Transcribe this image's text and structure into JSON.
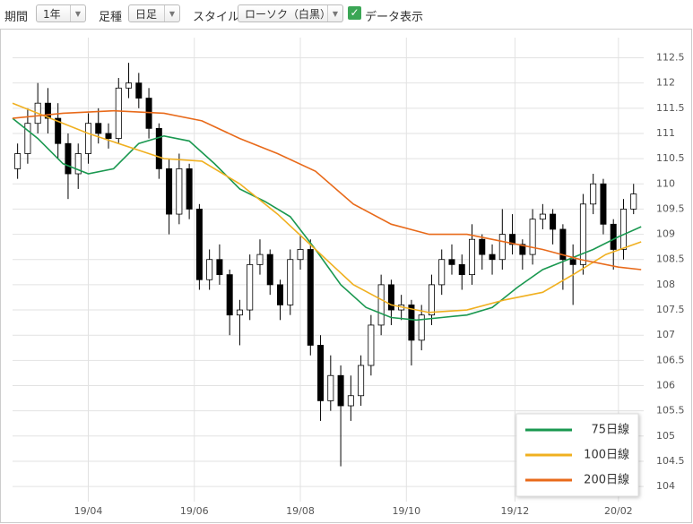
{
  "controls": {
    "period": {
      "label": "期間",
      "value": "1年"
    },
    "bar_type": {
      "label": "足種",
      "value": "日足"
    },
    "style": {
      "label": "スタイル",
      "value": "ローソク（白黒）"
    },
    "data_display": "データ表示"
  },
  "chart_data": {
    "type": "candlestick",
    "xlim": [
      0,
      250
    ],
    "ylim": [
      103.7,
      112.9
    ],
    "xticks": [
      {
        "value": 30,
        "label": "19/04"
      },
      {
        "value": 72,
        "label": "19/06"
      },
      {
        "value": 114,
        "label": "19/08"
      },
      {
        "value": 156,
        "label": "19/10"
      },
      {
        "value": 199,
        "label": "19/12"
      },
      {
        "value": 240,
        "label": "20/02"
      }
    ],
    "yticks": [
      104,
      104.5,
      105,
      105.5,
      106,
      106.5,
      107,
      107.5,
      108,
      108.5,
      109,
      109.5,
      110,
      110.5,
      111,
      111.5,
      112,
      112.5
    ],
    "grid": true,
    "legend": "lower right",
    "up_color": "#ffffff",
    "down_color": "#000000",
    "candles": [
      {
        "x": 2,
        "open": 110.3,
        "high": 110.8,
        "low": 110.1,
        "close": 110.6
      },
      {
        "x": 6,
        "open": 110.6,
        "high": 111.5,
        "low": 110.4,
        "close": 111.2
      },
      {
        "x": 10,
        "open": 111.2,
        "high": 112.0,
        "low": 111.0,
        "close": 111.6
      },
      {
        "x": 14,
        "open": 111.6,
        "high": 111.9,
        "low": 111.0,
        "close": 111.3
      },
      {
        "x": 18,
        "open": 111.3,
        "high": 111.6,
        "low": 110.5,
        "close": 110.8
      },
      {
        "x": 22,
        "open": 110.8,
        "high": 111.0,
        "low": 109.7,
        "close": 110.2
      },
      {
        "x": 26,
        "open": 110.2,
        "high": 110.8,
        "low": 109.9,
        "close": 110.6
      },
      {
        "x": 30,
        "open": 110.6,
        "high": 111.4,
        "low": 110.4,
        "close": 111.2
      },
      {
        "x": 34,
        "open": 111.2,
        "high": 111.5,
        "low": 110.8,
        "close": 111.0
      },
      {
        "x": 38,
        "open": 111.0,
        "high": 111.2,
        "low": 110.7,
        "close": 110.9
      },
      {
        "x": 42,
        "open": 110.9,
        "high": 112.1,
        "low": 110.8,
        "close": 111.9
      },
      {
        "x": 46,
        "open": 111.9,
        "high": 112.4,
        "low": 111.7,
        "close": 112.0
      },
      {
        "x": 50,
        "open": 112.0,
        "high": 112.2,
        "low": 111.5,
        "close": 111.7
      },
      {
        "x": 54,
        "open": 111.7,
        "high": 111.9,
        "low": 110.9,
        "close": 111.1
      },
      {
        "x": 58,
        "open": 111.1,
        "high": 111.2,
        "low": 110.1,
        "close": 110.3
      },
      {
        "x": 62,
        "open": 110.3,
        "high": 110.5,
        "low": 109.0,
        "close": 109.4
      },
      {
        "x": 66,
        "open": 109.4,
        "high": 110.6,
        "low": 109.2,
        "close": 110.3
      },
      {
        "x": 70,
        "open": 110.3,
        "high": 110.4,
        "low": 109.3,
        "close": 109.5
      },
      {
        "x": 74,
        "open": 109.5,
        "high": 109.6,
        "low": 107.9,
        "close": 108.1
      },
      {
        "x": 78,
        "open": 108.1,
        "high": 108.7,
        "low": 107.9,
        "close": 108.5
      },
      {
        "x": 82,
        "open": 108.5,
        "high": 108.8,
        "low": 108.0,
        "close": 108.2
      },
      {
        "x": 86,
        "open": 108.2,
        "high": 108.3,
        "low": 107.0,
        "close": 107.4
      },
      {
        "x": 90,
        "open": 107.4,
        "high": 107.7,
        "low": 106.8,
        "close": 107.5
      },
      {
        "x": 94,
        "open": 107.5,
        "high": 108.6,
        "low": 107.3,
        "close": 108.4
      },
      {
        "x": 98,
        "open": 108.4,
        "high": 108.9,
        "low": 108.2,
        "close": 108.6
      },
      {
        "x": 102,
        "open": 108.6,
        "high": 108.7,
        "low": 107.8,
        "close": 108.0
      },
      {
        "x": 106,
        "open": 108.0,
        "high": 108.1,
        "low": 107.3,
        "close": 107.6
      },
      {
        "x": 110,
        "open": 107.6,
        "high": 108.7,
        "low": 107.4,
        "close": 108.5
      },
      {
        "x": 114,
        "open": 108.5,
        "high": 109.0,
        "low": 108.3,
        "close": 108.7
      },
      {
        "x": 118,
        "open": 108.7,
        "high": 108.9,
        "low": 106.6,
        "close": 106.8
      },
      {
        "x": 122,
        "open": 106.8,
        "high": 107.0,
        "low": 105.3,
        "close": 105.7
      },
      {
        "x": 126,
        "open": 105.7,
        "high": 106.6,
        "low": 105.5,
        "close": 106.2
      },
      {
        "x": 130,
        "open": 106.2,
        "high": 106.4,
        "low": 104.4,
        "close": 105.6
      },
      {
        "x": 134,
        "open": 105.6,
        "high": 106.2,
        "low": 105.3,
        "close": 105.8
      },
      {
        "x": 138,
        "open": 105.8,
        "high": 106.6,
        "low": 105.6,
        "close": 106.4
      },
      {
        "x": 142,
        "open": 106.4,
        "high": 107.4,
        "low": 106.2,
        "close": 107.2
      },
      {
        "x": 146,
        "open": 107.2,
        "high": 108.2,
        "low": 107.0,
        "close": 108.0
      },
      {
        "x": 150,
        "open": 108.0,
        "high": 108.1,
        "low": 107.2,
        "close": 107.5
      },
      {
        "x": 154,
        "open": 107.5,
        "high": 107.8,
        "low": 107.3,
        "close": 107.6
      },
      {
        "x": 158,
        "open": 107.6,
        "high": 107.7,
        "low": 106.4,
        "close": 106.9
      },
      {
        "x": 162,
        "open": 106.9,
        "high": 107.6,
        "low": 106.7,
        "close": 107.4
      },
      {
        "x": 166,
        "open": 107.4,
        "high": 108.2,
        "low": 107.2,
        "close": 108.0
      },
      {
        "x": 170,
        "open": 108.0,
        "high": 108.7,
        "low": 107.8,
        "close": 108.5
      },
      {
        "x": 174,
        "open": 108.5,
        "high": 108.8,
        "low": 108.2,
        "close": 108.4
      },
      {
        "x": 178,
        "open": 108.4,
        "high": 108.6,
        "low": 107.9,
        "close": 108.2
      },
      {
        "x": 182,
        "open": 108.2,
        "high": 109.2,
        "low": 108.0,
        "close": 108.9
      },
      {
        "x": 186,
        "open": 108.9,
        "high": 109.0,
        "low": 108.3,
        "close": 108.6
      },
      {
        "x": 190,
        "open": 108.6,
        "high": 108.8,
        "low": 108.2,
        "close": 108.5
      },
      {
        "x": 194,
        "open": 108.5,
        "high": 109.5,
        "low": 108.3,
        "close": 109.0
      },
      {
        "x": 198,
        "open": 109.0,
        "high": 109.4,
        "low": 108.6,
        "close": 108.8
      },
      {
        "x": 202,
        "open": 108.8,
        "high": 108.9,
        "low": 108.3,
        "close": 108.6
      },
      {
        "x": 206,
        "open": 108.6,
        "high": 109.5,
        "low": 108.4,
        "close": 109.3
      },
      {
        "x": 210,
        "open": 109.3,
        "high": 109.6,
        "low": 109.1,
        "close": 109.4
      },
      {
        "x": 214,
        "open": 109.4,
        "high": 109.5,
        "low": 108.8,
        "close": 109.1
      },
      {
        "x": 218,
        "open": 109.1,
        "high": 109.2,
        "low": 107.9,
        "close": 108.5
      },
      {
        "x": 222,
        "open": 108.5,
        "high": 108.8,
        "low": 107.6,
        "close": 108.4
      },
      {
        "x": 226,
        "open": 108.4,
        "high": 109.8,
        "low": 108.2,
        "close": 109.6
      },
      {
        "x": 230,
        "open": 109.6,
        "high": 110.2,
        "low": 109.4,
        "close": 110.0
      },
      {
        "x": 234,
        "open": 110.0,
        "high": 110.1,
        "low": 109.0,
        "close": 109.2
      },
      {
        "x": 238,
        "open": 109.2,
        "high": 109.3,
        "low": 108.3,
        "close": 108.7
      },
      {
        "x": 242,
        "open": 108.7,
        "high": 109.7,
        "low": 108.5,
        "close": 109.5
      },
      {
        "x": 246,
        "open": 109.5,
        "high": 110.0,
        "low": 109.4,
        "close": 109.8
      }
    ],
    "series": [
      {
        "name": "75日線",
        "color": "#1a9850",
        "x": [
          0,
          10,
          20,
          30,
          40,
          50,
          60,
          70,
          80,
          90,
          100,
          110,
          120,
          130,
          140,
          150,
          160,
          170,
          180,
          190,
          200,
          210,
          220,
          230,
          240,
          249
        ],
        "values": [
          111.3,
          110.9,
          110.4,
          110.2,
          110.3,
          110.8,
          110.95,
          110.85,
          110.4,
          109.9,
          109.65,
          109.35,
          108.7,
          108.0,
          107.55,
          107.35,
          107.3,
          107.35,
          107.4,
          107.55,
          107.95,
          108.3,
          108.5,
          108.7,
          108.95,
          109.15
        ]
      },
      {
        "name": "100日線",
        "color": "#f0b020",
        "x": [
          0,
          30,
          60,
          75,
          90,
          105,
          120,
          135,
          150,
          165,
          180,
          195,
          210,
          222,
          235,
          249
        ],
        "values": [
          111.6,
          111.0,
          110.5,
          110.45,
          110.0,
          109.4,
          108.7,
          108.0,
          107.6,
          107.45,
          107.5,
          107.7,
          107.85,
          108.2,
          108.6,
          108.85
        ]
      },
      {
        "name": "200日線",
        "color": "#e86a1a",
        "x": [
          0,
          20,
          40,
          60,
          75,
          90,
          105,
          120,
          135,
          150,
          165,
          180,
          195,
          210,
          225,
          240,
          249
        ],
        "values": [
          111.3,
          111.4,
          111.45,
          111.4,
          111.25,
          110.9,
          110.6,
          110.25,
          109.6,
          109.2,
          109.0,
          109.0,
          108.85,
          108.7,
          108.5,
          108.35,
          108.3
        ]
      }
    ]
  }
}
